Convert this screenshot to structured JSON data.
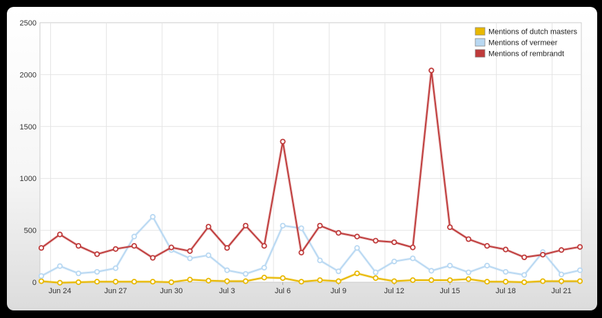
{
  "chart_data": {
    "type": "line",
    "x": [
      "Jun 23",
      "Jun 24",
      "Jun 25",
      "Jun 26",
      "Jun 27",
      "Jun 28",
      "Jun 29",
      "Jun 30",
      "Jul 1",
      "Jul 2",
      "Jul 3",
      "Jul 4",
      "Jul 5",
      "Jul 6",
      "Jul 7",
      "Jul 8",
      "Jul 9",
      "Jul 10",
      "Jul 11",
      "Jul 12",
      "Jul 13",
      "Jul 14",
      "Jul 15",
      "Jul 16",
      "Jul 17",
      "Jul 18",
      "Jul 19",
      "Jul 20",
      "Jul 21",
      "Jul 22"
    ],
    "xticks": [
      "Jun 24",
      "Jun 27",
      "Jun 30",
      "Jul 3",
      "Jul 6",
      "Jul 9",
      "Jul 12",
      "Jul 15",
      "Jul 18",
      "Jul 21"
    ],
    "ylim": [
      0,
      2500
    ],
    "yticks": [
      0,
      500,
      1000,
      1500,
      2000,
      2500
    ],
    "grid": true,
    "legend_position": "top-right",
    "series": [
      {
        "name": "Mentions of dutch masters",
        "color": "#e8b800",
        "values": [
          10,
          -5,
          0,
          5,
          5,
          5,
          5,
          0,
          25,
          15,
          10,
          10,
          45,
          40,
          5,
          20,
          10,
          85,
          40,
          10,
          20,
          20,
          20,
          30,
          5,
          5,
          0,
          10,
          10,
          10
        ]
      },
      {
        "name": "Mentions of vermeer",
        "color": "#b8d8f2",
        "values": [
          60,
          155,
          85,
          100,
          135,
          440,
          630,
          310,
          230,
          260,
          115,
          80,
          140,
          545,
          520,
          210,
          105,
          330,
          95,
          200,
          230,
          110,
          160,
          95,
          160,
          100,
          70,
          290,
          75,
          115
        ]
      },
      {
        "name": "Mentions of rembrandt",
        "color": "#bf3b3b",
        "values": [
          330,
          460,
          350,
          270,
          320,
          350,
          235,
          335,
          300,
          535,
          330,
          545,
          350,
          1355,
          285,
          545,
          475,
          440,
          400,
          385,
          335,
          2040,
          530,
          415,
          350,
          315,
          240,
          265,
          310,
          340
        ]
      }
    ]
  }
}
